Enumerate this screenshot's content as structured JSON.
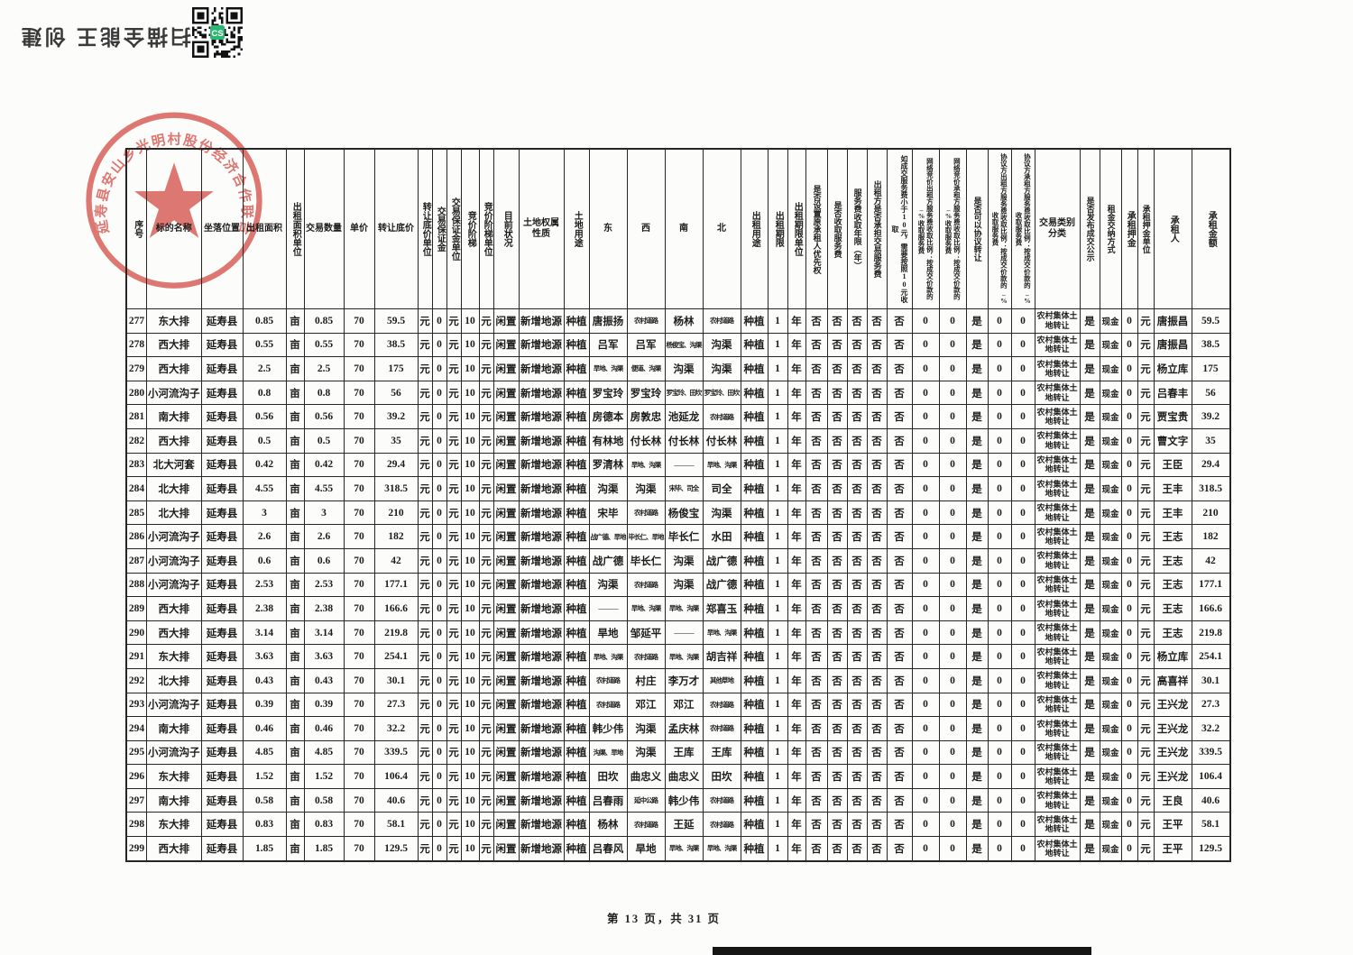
{
  "scan": {
    "caption": "扫描全能王 创建",
    "qr_center_label": "CS",
    "qr_accent_color": "#2bb673"
  },
  "stamp": {
    "text": "延寿县安山乡光明村股份经济合作联合社",
    "color": "#da5a55"
  },
  "table": {
    "columns": [
      "序号",
      "标的名称",
      "坐落位置",
      "出租面积",
      "出租面积单位",
      "交易数量",
      "单价",
      "转让底价",
      "转让底价单位",
      "交易保证金",
      "交易保证金单位",
      "竞价阶梯",
      "竞价阶梯单位",
      "目前状况",
      "土地权属性质",
      "土地用途",
      "东",
      "西",
      "南",
      "北",
      "出租用途",
      "出租期限",
      "出租期限单位",
      "是否设置原承租人优先权",
      "是否收取服务费",
      "服务费收取年限（年）",
      "出租方是否承担交易服务费",
      "如成交服务费小于10元，需要按照10元收取",
      "网络竞价出租方服务费收取比例：按成交价款的_%收取服务费",
      "网络竞价承租方服务费收取比例：按成交价款的_%收取服务费",
      "是否可以协议转让",
      "协议方出租方服务费收取比例：按成交价款的_%收取服务费",
      "协议方承租方服务费收取比例：按成交价款的_%收取服务费",
      "交易类别分类",
      "是否发布成交公示",
      "租金交纳方式",
      "承租押金",
      "承租押金单位",
      "承租人",
      "承租金额"
    ],
    "rows": [
      [
        "277",
        "东大排",
        "延寿县",
        "0.85",
        "亩",
        "0.85",
        "70",
        "59.5",
        "元",
        "0",
        "元",
        "10",
        "元",
        "闲置",
        "新增地源",
        "种植",
        "唐振扬",
        "农村道路",
        "杨林",
        "农村道路",
        "种植",
        "1",
        "年",
        "否",
        "否",
        "否",
        "否",
        "否",
        "0",
        "0",
        "是",
        "0",
        "0",
        "农村集体土地转让",
        "是",
        "现金",
        "0",
        "元",
        "唐振昌",
        "59.5"
      ],
      [
        "278",
        "西大排",
        "延寿县",
        "0.55",
        "亩",
        "0.55",
        "70",
        "38.5",
        "元",
        "0",
        "元",
        "10",
        "元",
        "闲置",
        "新增地源",
        "种植",
        "吕军",
        "吕军",
        "杨俊宝、沟渠",
        "沟渠",
        "种植",
        "1",
        "年",
        "否",
        "否",
        "否",
        "否",
        "否",
        "0",
        "0",
        "是",
        "0",
        "0",
        "农村集体土地转让",
        "是",
        "现金",
        "0",
        "元",
        "唐振昌",
        "38.5"
      ],
      [
        "279",
        "西大排",
        "延寿县",
        "2.5",
        "亩",
        "2.5",
        "70",
        "175",
        "元",
        "0",
        "元",
        "10",
        "元",
        "闲置",
        "新增地源",
        "种植",
        "旱地、沟渠",
        "便道、沟渠",
        "沟渠",
        "沟渠",
        "种植",
        "1",
        "年",
        "否",
        "否",
        "否",
        "否",
        "否",
        "0",
        "0",
        "是",
        "0",
        "0",
        "农村集体土地转让",
        "是",
        "现金",
        "0",
        "元",
        "杨立库",
        "175"
      ],
      [
        "280",
        "小河流沟子",
        "延寿县",
        "0.8",
        "亩",
        "0.8",
        "70",
        "56",
        "元",
        "0",
        "元",
        "10",
        "元",
        "闲置",
        "新增地源",
        "种植",
        "罗宝玲",
        "罗宝玲",
        "罗宝玲、田坎",
        "罗宝玲、田坎",
        "种植",
        "1",
        "年",
        "否",
        "否",
        "否",
        "否",
        "否",
        "0",
        "0",
        "是",
        "0",
        "0",
        "农村集体土地转让",
        "是",
        "现金",
        "0",
        "元",
        "吕春丰",
        "56"
      ],
      [
        "281",
        "南大排",
        "延寿县",
        "0.56",
        "亩",
        "0.56",
        "70",
        "39.2",
        "元",
        "0",
        "元",
        "10",
        "元",
        "闲置",
        "新增地源",
        "种植",
        "房德本",
        "房敦忠",
        "池延龙",
        "农村道路",
        "种植",
        "1",
        "年",
        "否",
        "否",
        "否",
        "否",
        "否",
        "0",
        "0",
        "是",
        "0",
        "0",
        "农村集体土地转让",
        "是",
        "现金",
        "0",
        "元",
        "贾宝贵",
        "39.2"
      ],
      [
        "282",
        "西大排",
        "延寿县",
        "0.5",
        "亩",
        "0.5",
        "70",
        "35",
        "元",
        "0",
        "元",
        "10",
        "元",
        "闲置",
        "新增地源",
        "种植",
        "有林地",
        "付长林",
        "付长林",
        "付长林",
        "种植",
        "1",
        "年",
        "否",
        "否",
        "否",
        "否",
        "否",
        "0",
        "0",
        "是",
        "0",
        "0",
        "农村集体土地转让",
        "是",
        "现金",
        "0",
        "元",
        "曹文字",
        "35"
      ],
      [
        "283",
        "北大河套",
        "延寿县",
        "0.42",
        "亩",
        "0.42",
        "70",
        "29.4",
        "元",
        "0",
        "元",
        "10",
        "元",
        "闲置",
        "新增地源",
        "种植",
        "罗清林",
        "旱地、沟渠",
        "— — —",
        "旱地、沟渠",
        "种植",
        "1",
        "年",
        "否",
        "否",
        "否",
        "否",
        "否",
        "0",
        "0",
        "是",
        "0",
        "0",
        "农村集体土地转让",
        "是",
        "现金",
        "0",
        "元",
        "王臣",
        "29.4"
      ],
      [
        "284",
        "北大排",
        "延寿县",
        "4.55",
        "亩",
        "4.55",
        "70",
        "318.5",
        "元",
        "0",
        "元",
        "10",
        "元",
        "闲置",
        "新增地源",
        "种植",
        "沟渠",
        "沟渠",
        "宋毕、司全",
        "司全",
        "种植",
        "1",
        "年",
        "否",
        "否",
        "否",
        "否",
        "否",
        "0",
        "0",
        "是",
        "0",
        "0",
        "农村集体土地转让",
        "是",
        "现金",
        "0",
        "元",
        "王丰",
        "318.5"
      ],
      [
        "285",
        "北大排",
        "延寿县",
        "3",
        "亩",
        "3",
        "70",
        "210",
        "元",
        "0",
        "元",
        "10",
        "元",
        "闲置",
        "新增地源",
        "种植",
        "宋毕",
        "农村道路",
        "杨俊宝",
        "沟渠",
        "种植",
        "1",
        "年",
        "否",
        "否",
        "否",
        "否",
        "否",
        "0",
        "0",
        "是",
        "0",
        "0",
        "农村集体土地转让",
        "是",
        "现金",
        "0",
        "元",
        "王丰",
        "210"
      ],
      [
        "286",
        "小河流沟子",
        "延寿县",
        "2.6",
        "亩",
        "2.6",
        "70",
        "182",
        "元",
        "0",
        "元",
        "10",
        "元",
        "闲置",
        "新增地源",
        "种植",
        "战广德、旱地",
        "毕长仁、旱地",
        "毕长仁",
        "水田",
        "种植",
        "1",
        "年",
        "否",
        "否",
        "否",
        "否",
        "否",
        "0",
        "0",
        "是",
        "0",
        "0",
        "农村集体土地转让",
        "是",
        "现金",
        "0",
        "元",
        "王志",
        "182"
      ],
      [
        "287",
        "小河流沟子",
        "延寿县",
        "0.6",
        "亩",
        "0.6",
        "70",
        "42",
        "元",
        "0",
        "元",
        "10",
        "元",
        "闲置",
        "新增地源",
        "种植",
        "战广德",
        "毕长仁",
        "沟渠",
        "战广德",
        "种植",
        "1",
        "年",
        "否",
        "否",
        "否",
        "否",
        "否",
        "0",
        "0",
        "是",
        "0",
        "0",
        "农村集体土地转让",
        "是",
        "现金",
        "0",
        "元",
        "王志",
        "42"
      ],
      [
        "288",
        "小河流沟子",
        "延寿县",
        "2.53",
        "亩",
        "2.53",
        "70",
        "177.1",
        "元",
        "0",
        "元",
        "10",
        "元",
        "闲置",
        "新增地源",
        "种植",
        "沟渠",
        "农村道路",
        "沟渠",
        "战广德",
        "种植",
        "1",
        "年",
        "否",
        "否",
        "否",
        "否",
        "否",
        "0",
        "0",
        "是",
        "0",
        "0",
        "农村集体土地转让",
        "是",
        "现金",
        "0",
        "元",
        "王志",
        "177.1"
      ],
      [
        "289",
        "西大排",
        "延寿县",
        "2.38",
        "亩",
        "2.38",
        "70",
        "166.6",
        "元",
        "0",
        "元",
        "10",
        "元",
        "闲置",
        "新增地源",
        "种植",
        "— — —",
        "旱地、沟渠",
        "旱地、沟渠",
        "郑喜玉",
        "种植",
        "1",
        "年",
        "否",
        "否",
        "否",
        "否",
        "否",
        "0",
        "0",
        "是",
        "0",
        "0",
        "农村集体土地转让",
        "是",
        "现金",
        "0",
        "元",
        "王志",
        "166.6"
      ],
      [
        "290",
        "西大排",
        "延寿县",
        "3.14",
        "亩",
        "3.14",
        "70",
        "219.8",
        "元",
        "0",
        "元",
        "10",
        "元",
        "闲置",
        "新增地源",
        "种植",
        "旱地",
        "邹延平",
        "— — —",
        "旱地、沟渠",
        "种植",
        "1",
        "年",
        "否",
        "否",
        "否",
        "否",
        "否",
        "0",
        "0",
        "是",
        "0",
        "0",
        "农村集体土地转让",
        "是",
        "现金",
        "0",
        "元",
        "王志",
        "219.8"
      ],
      [
        "291",
        "东大排",
        "延寿县",
        "3.63",
        "亩",
        "3.63",
        "70",
        "254.1",
        "元",
        "0",
        "元",
        "10",
        "元",
        "闲置",
        "新增地源",
        "种植",
        "旱地、沟渠",
        "农村道路",
        "旱地、沟渠",
        "胡吉祥",
        "种植",
        "1",
        "年",
        "否",
        "否",
        "否",
        "否",
        "否",
        "0",
        "0",
        "是",
        "0",
        "0",
        "农村集体土地转让",
        "是",
        "现金",
        "0",
        "元",
        "杨立库",
        "254.1"
      ],
      [
        "292",
        "北大排",
        "延寿县",
        "0.43",
        "亩",
        "0.43",
        "70",
        "30.1",
        "元",
        "0",
        "元",
        "10",
        "元",
        "闲置",
        "新增地源",
        "种植",
        "农村道路",
        "村庄",
        "李万才",
        "其他草地",
        "种植",
        "1",
        "年",
        "否",
        "否",
        "否",
        "否",
        "否",
        "0",
        "0",
        "是",
        "0",
        "0",
        "农村集体土地转让",
        "是",
        "现金",
        "0",
        "元",
        "高喜祥",
        "30.1"
      ],
      [
        "293",
        "小河流沟子",
        "延寿县",
        "0.39",
        "亩",
        "0.39",
        "70",
        "27.3",
        "元",
        "0",
        "元",
        "10",
        "元",
        "闲置",
        "新增地源",
        "种植",
        "农村道路",
        "邓江",
        "邓江",
        "农村道路",
        "种植",
        "1",
        "年",
        "否",
        "否",
        "否",
        "否",
        "否",
        "0",
        "0",
        "是",
        "0",
        "0",
        "农村集体土地转让",
        "是",
        "现金",
        "0",
        "元",
        "王兴龙",
        "27.3"
      ],
      [
        "294",
        "南大排",
        "延寿县",
        "0.46",
        "亩",
        "0.46",
        "70",
        "32.2",
        "元",
        "0",
        "元",
        "10",
        "元",
        "闲置",
        "新增地源",
        "种植",
        "韩少伟",
        "沟渠",
        "孟庆林",
        "农村道路",
        "种植",
        "1",
        "年",
        "否",
        "否",
        "否",
        "否",
        "否",
        "0",
        "0",
        "是",
        "0",
        "0",
        "农村集体土地转让",
        "是",
        "现金",
        "0",
        "元",
        "王兴龙",
        "32.2"
      ],
      [
        "295",
        "小河流沟子",
        "延寿县",
        "4.85",
        "亩",
        "4.85",
        "70",
        "339.5",
        "元",
        "0",
        "元",
        "10",
        "元",
        "闲置",
        "新增地源",
        "种植",
        "沟渠、旱地",
        "沟渠",
        "王库",
        "王库",
        "种植",
        "1",
        "年",
        "否",
        "否",
        "否",
        "否",
        "否",
        "0",
        "0",
        "是",
        "0",
        "0",
        "农村集体土地转让",
        "是",
        "现金",
        "0",
        "元",
        "王兴龙",
        "339.5"
      ],
      [
        "296",
        "东大排",
        "延寿县",
        "1.52",
        "亩",
        "1.52",
        "70",
        "106.4",
        "元",
        "0",
        "元",
        "10",
        "元",
        "闲置",
        "新增地源",
        "种植",
        "田坎",
        "曲忠义",
        "曲忠义",
        "田坎",
        "种植",
        "1",
        "年",
        "否",
        "否",
        "否",
        "否",
        "否",
        "0",
        "0",
        "是",
        "0",
        "0",
        "农村集体土地转让",
        "是",
        "现金",
        "0",
        "元",
        "王兴龙",
        "106.4"
      ],
      [
        "297",
        "南大排",
        "延寿县",
        "0.58",
        "亩",
        "0.58",
        "70",
        "40.6",
        "元",
        "0",
        "元",
        "10",
        "元",
        "闲置",
        "新增地源",
        "种植",
        "吕春雨",
        "延中公路",
        "韩少伟",
        "农村道路",
        "种植",
        "1",
        "年",
        "否",
        "否",
        "否",
        "否",
        "否",
        "0",
        "0",
        "是",
        "0",
        "0",
        "农村集体土地转让",
        "是",
        "现金",
        "0",
        "元",
        "王良",
        "40.6"
      ],
      [
        "298",
        "东大排",
        "延寿县",
        "0.83",
        "亩",
        "0.83",
        "70",
        "58.1",
        "元",
        "0",
        "元",
        "10",
        "元",
        "闲置",
        "新增地源",
        "种植",
        "杨林",
        "农村道路",
        "王延",
        "农村道路",
        "种植",
        "1",
        "年",
        "否",
        "否",
        "否",
        "否",
        "否",
        "0",
        "0",
        "是",
        "0",
        "0",
        "农村集体土地转让",
        "是",
        "现金",
        "0",
        "元",
        "王平",
        "58.1"
      ],
      [
        "299",
        "西大排",
        "延寿县",
        "1.85",
        "亩",
        "1.85",
        "70",
        "129.5",
        "元",
        "0",
        "元",
        "10",
        "元",
        "闲置",
        "新增地源",
        "种植",
        "吕春风",
        "旱地",
        "旱地、沟渠",
        "旱地、沟渠",
        "种植",
        "1",
        "年",
        "否",
        "否",
        "否",
        "否",
        "否",
        "0",
        "0",
        "是",
        "0",
        "0",
        "农村集体土地转让",
        "是",
        "现金",
        "0",
        "元",
        "王平",
        "129.5"
      ]
    ]
  },
  "footer": {
    "page_text": "第 13 页，共 31 页"
  }
}
